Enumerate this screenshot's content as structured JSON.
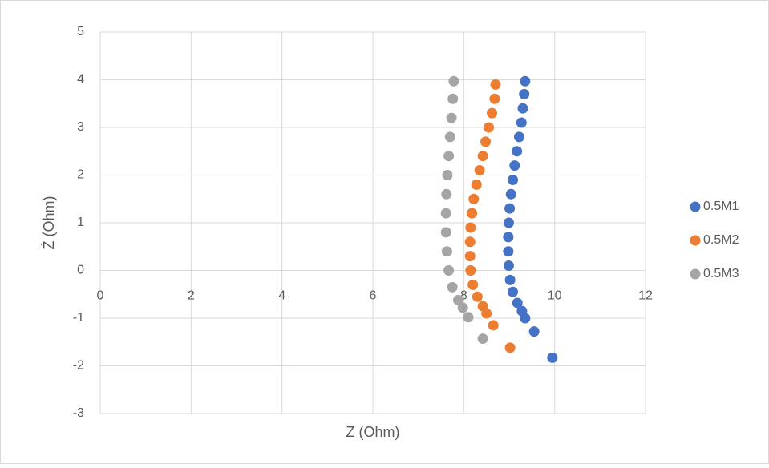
{
  "chart_data": {
    "type": "scatter",
    "x_label": "Z (Ohm)",
    "y_label": "Ź  (Ohm)",
    "xlim": [
      0,
      12
    ],
    "xticks": [
      0,
      2,
      4,
      6,
      8,
      10,
      12
    ],
    "ylim": [
      -3,
      5
    ],
    "yticks": [
      -3,
      -2,
      -1,
      0,
      1,
      2,
      3,
      4,
      5
    ],
    "grid": true,
    "legend": "right",
    "series": [
      {
        "name": "0.5M1",
        "color": "#4472c4",
        "x": [
          9.35,
          9.33,
          9.3,
          9.27,
          9.22,
          9.17,
          9.12,
          9.08,
          9.04,
          9.01,
          8.99,
          8.98,
          8.98,
          8.99,
          9.02,
          9.08,
          9.18,
          9.28,
          9.35,
          9.55,
          9.95
        ],
        "values": [
          3.97,
          3.7,
          3.4,
          3.1,
          2.8,
          2.5,
          2.2,
          1.9,
          1.6,
          1.3,
          1.0,
          0.7,
          0.4,
          0.1,
          -0.2,
          -0.45,
          -0.68,
          -0.85,
          -1.0,
          -1.28,
          -1.83
        ]
      },
      {
        "name": "0.5M2",
        "color": "#ed7d31",
        "x": [
          8.7,
          8.68,
          8.62,
          8.55,
          8.48,
          8.42,
          8.35,
          8.28,
          8.22,
          8.18,
          8.15,
          8.14,
          8.14,
          8.15,
          8.2,
          8.3,
          8.42,
          8.5,
          8.65,
          9.02
        ],
        "values": [
          3.9,
          3.6,
          3.3,
          3.0,
          2.7,
          2.4,
          2.1,
          1.8,
          1.5,
          1.2,
          0.9,
          0.6,
          0.3,
          0.0,
          -0.3,
          -0.55,
          -0.75,
          -0.9,
          -1.15,
          -1.62
        ]
      },
      {
        "name": "0.5M3",
        "color": "#a5a5a5",
        "x": [
          7.78,
          7.76,
          7.73,
          7.7,
          7.67,
          7.64,
          7.62,
          7.61,
          7.61,
          7.63,
          7.67,
          7.75,
          7.88,
          7.98,
          8.1,
          8.42
        ],
        "values": [
          3.97,
          3.6,
          3.2,
          2.8,
          2.4,
          2.0,
          1.6,
          1.2,
          0.8,
          0.4,
          0.0,
          -0.35,
          -0.62,
          -0.78,
          -0.98,
          -1.43
        ]
      }
    ]
  }
}
